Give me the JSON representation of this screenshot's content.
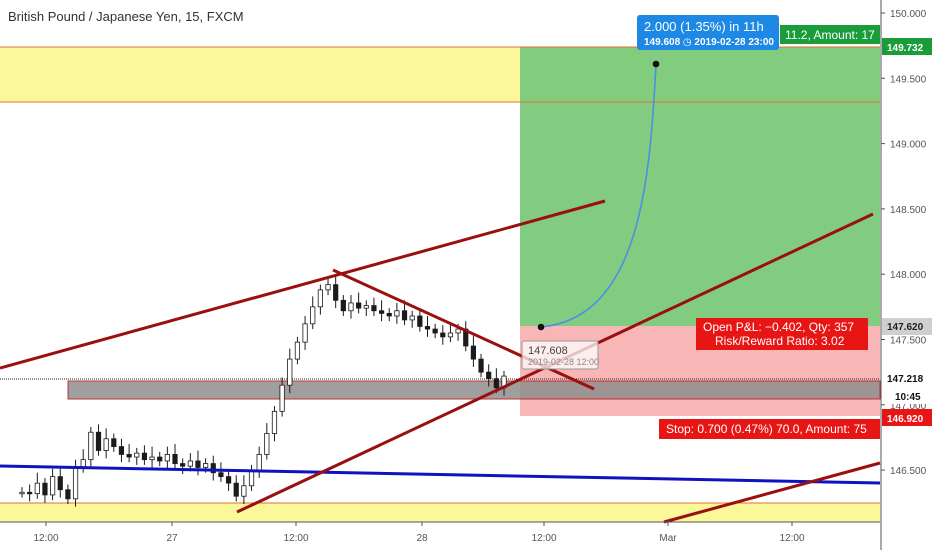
{
  "header": {
    "title": "British Pound / Japanese Yen, 15, FXCM"
  },
  "chart_data": {
    "type": "candlestick",
    "symbol": "British Pound / Japanese Yen",
    "interval": "15",
    "source": "FXCM",
    "ylim": [
      146.2,
      150.1
    ],
    "y_ticks": [
      146.5,
      147.0,
      147.5,
      148.0,
      148.5,
      149.0,
      149.5,
      150.0
    ],
    "y_tick_labels": [
      "146.500",
      "147.000",
      "147.500",
      "148.000",
      "148.500",
      "149.000",
      "149.500",
      "150.000"
    ],
    "x_tick_labels": [
      "12:00",
      "27",
      "12:00",
      "28",
      "12:00",
      "Mar",
      "12:00"
    ],
    "price_labels": {
      "target": "149.732",
      "entry": "147.620",
      "current": "147.218",
      "countdown": "10:45",
      "stop": "146.920"
    },
    "colors": {
      "target_zone": "#7bc97b",
      "stop_zone": "#f8b6b6",
      "yellow_zone": "#fbf89a",
      "channel_line": "#9a1010",
      "support_line": "#1111c0",
      "projection": "#4a90e2",
      "label_green": "#1a9c3a",
      "label_red": "#e81515",
      "label_blue": "#1e88e5"
    },
    "annotations": {
      "projection_top": "2.000 (1.35%) in 11h",
      "projection_bottom": "149.608  ◷ 2019-02-28  23:00",
      "projection_start_price": "147.608",
      "projection_start_date": "2019-02-28  12:00",
      "target_text": "11.2, Amount: 17",
      "open_pl": "Open P&L: −0.402, Qty: 357",
      "risk_reward": "Risk/Reward Ratio: 3.02",
      "stop_text": "Stop: 0.700 (0.47%) 70.0, Amount: 75"
    },
    "close_series": [
      146.33,
      146.32,
      146.4,
      146.31,
      146.45,
      146.35,
      146.28,
      146.52,
      146.58,
      146.79,
      146.65,
      146.74,
      146.68,
      146.62,
      146.6,
      146.63,
      146.58,
      146.6,
      146.57,
      146.62,
      146.55,
      146.53,
      146.57,
      146.52,
      146.55,
      146.48,
      146.45,
      146.4,
      146.3,
      146.38,
      146.5,
      146.62,
      146.78,
      146.95,
      147.15,
      147.35,
      147.48,
      147.62,
      147.75,
      147.88,
      147.92,
      147.8,
      147.72,
      147.78,
      147.74,
      147.76,
      147.72,
      147.7,
      147.68,
      147.72,
      147.65,
      147.68,
      147.6,
      147.58,
      147.55,
      147.52,
      147.55,
      147.58,
      147.45,
      147.35,
      147.25,
      147.2,
      147.13,
      147.22
    ]
  }
}
